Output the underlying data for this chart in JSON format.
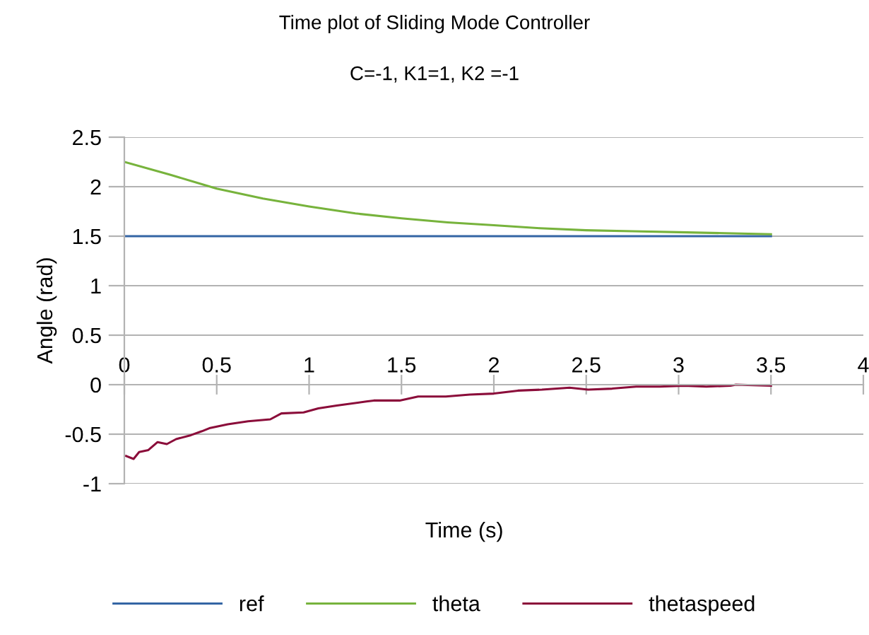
{
  "chart_data": {
    "type": "line",
    "title": "Time plot of Sliding Mode Controller",
    "subtitle": "C=-1, K1=1, K2 =-1",
    "xlabel": "Time (s)",
    "ylabel": "Angle (rad)",
    "xlim": [
      0,
      4
    ],
    "xticks": [
      0,
      0.5,
      1,
      1.5,
      2,
      2.5,
      3,
      3.5,
      4
    ],
    "ylim": [
      -1,
      2.5
    ],
    "yticks": [
      -1,
      -0.5,
      0,
      0.5,
      1,
      1.5,
      2,
      2.5
    ],
    "grid": "y",
    "legend": "bottom",
    "marker": "none",
    "line_style": "solid",
    "series": [
      {
        "name": "ref",
        "color": "#3465a4",
        "x": [
          0,
          3.5
        ],
        "values": [
          1.5,
          1.5
        ]
      },
      {
        "name": "theta",
        "color": "#77b33c",
        "x": [
          0,
          0.25,
          0.5,
          0.75,
          1,
          1.25,
          1.5,
          1.75,
          2,
          2.25,
          2.5,
          2.75,
          3,
          3.25,
          3.5
        ],
        "values": [
          2.25,
          2.12,
          1.98,
          1.88,
          1.8,
          1.73,
          1.68,
          1.64,
          1.61,
          1.58,
          1.56,
          1.55,
          1.54,
          1.53,
          1.52
        ]
      },
      {
        "name": "thetaspeed",
        "color": "#8b0d3a",
        "x": [
          0.01,
          0.05,
          0.08,
          0.13,
          0.18,
          0.23,
          0.28,
          0.36,
          0.42,
          0.46,
          0.56,
          0.67,
          0.79,
          0.85,
          0.97,
          1.05,
          1.15,
          1.31,
          1.35,
          1.49,
          1.59,
          1.74,
          1.87,
          2.0,
          2.13,
          2.26,
          2.41,
          2.51,
          2.64,
          2.77,
          2.9,
          3.03,
          3.15,
          3.28,
          3.31,
          3.5
        ],
        "values": [
          -0.72,
          -0.75,
          -0.68,
          -0.66,
          -0.58,
          -0.6,
          -0.55,
          -0.51,
          -0.47,
          -0.44,
          -0.4,
          -0.37,
          -0.35,
          -0.29,
          -0.28,
          -0.24,
          -0.21,
          -0.17,
          -0.16,
          -0.16,
          -0.12,
          -0.12,
          -0.1,
          -0.09,
          -0.06,
          -0.05,
          -0.03,
          -0.05,
          -0.04,
          -0.02,
          -0.02,
          -0.01,
          -0.02,
          -0.01,
          0.0,
          -0.01
        ]
      }
    ]
  }
}
